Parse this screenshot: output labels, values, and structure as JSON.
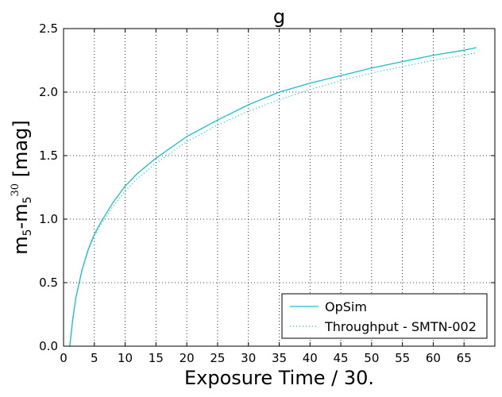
{
  "chart_data": {
    "type": "line",
    "title": "g",
    "xlabel": "Exposure Time / 30.",
    "ylabel_main": "m",
    "ylabel_sub": "5",
    "ylabel_mid": "-m",
    "ylabel_sub2": "5",
    "ylabel_sup": "30",
    "ylabel_tail": " [mag]",
    "xlim": [
      0,
      70
    ],
    "ylim": [
      0,
      2.5
    ],
    "xticks": [
      0,
      5,
      10,
      15,
      20,
      25,
      30,
      35,
      40,
      45,
      50,
      55,
      60,
      65
    ],
    "yticks": [
      0.0,
      0.5,
      1.0,
      1.5,
      2.0,
      2.5
    ],
    "ytick_labels": [
      "0.0",
      "0.5",
      "1.0",
      "1.5",
      "2.0",
      "2.5"
    ],
    "grid": true,
    "legend_position": "lower-right",
    "series": [
      {
        "name": "OpSim",
        "color": "#17becf",
        "style": "solid",
        "x": [
          1,
          1.5,
          2,
          3,
          4,
          5,
          6,
          8,
          10,
          12,
          15,
          20,
          25,
          30,
          35,
          40,
          45,
          50,
          55,
          60,
          65,
          67
        ],
        "y": [
          0.0,
          0.21,
          0.38,
          0.6,
          0.76,
          0.88,
          0.97,
          1.13,
          1.26,
          1.36,
          1.48,
          1.65,
          1.78,
          1.9,
          2.0,
          2.07,
          2.13,
          2.19,
          2.24,
          2.29,
          2.33,
          2.35
        ]
      },
      {
        "name": "Throughput - SMTN-002",
        "color": "#17becf",
        "style": "dotted",
        "x": [
          1,
          1.5,
          2,
          3,
          4,
          5,
          6,
          8,
          10,
          12,
          15,
          20,
          25,
          30,
          35,
          40,
          45,
          50,
          55,
          60,
          65,
          67
        ],
        "y": [
          0.0,
          0.22,
          0.38,
          0.6,
          0.75,
          0.87,
          0.95,
          1.1,
          1.22,
          1.32,
          1.44,
          1.61,
          1.74,
          1.85,
          1.94,
          2.02,
          2.09,
          2.15,
          2.2,
          2.25,
          2.29,
          2.31
        ]
      }
    ]
  }
}
